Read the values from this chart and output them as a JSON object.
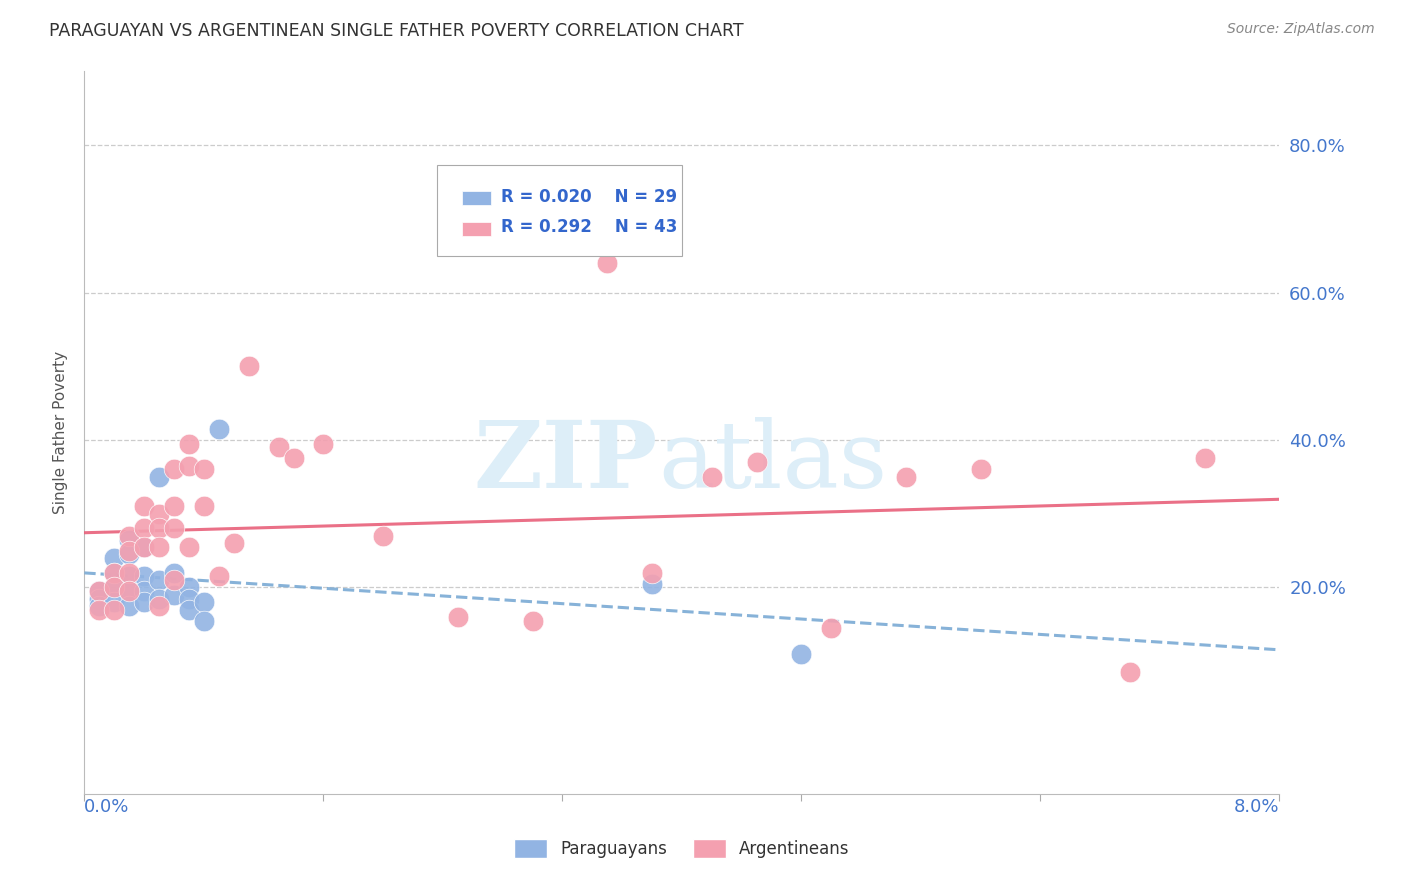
{
  "title": "PARAGUAYAN VS ARGENTINEAN SINGLE FATHER POVERTY CORRELATION CHART",
  "source": "Source: ZipAtlas.com",
  "ylabel": "Single Father Poverty",
  "xlim": [
    0.0,
    0.08
  ],
  "ylim": [
    -0.08,
    0.9
  ],
  "legend_r1": "R = 0.020",
  "legend_n1": "N = 29",
  "legend_r2": "R = 0.292",
  "legend_n2": "N = 43",
  "paraguayan_color": "#92b4e3",
  "argentinean_color": "#f4a0b0",
  "paraguayan_line_color": "#7aaad4",
  "argentinean_line_color": "#e8607a",
  "background_color": "#ffffff",
  "grid_color": "#cccccc",
  "paraguayan_x": [
    0.001,
    0.001,
    0.001,
    0.002,
    0.002,
    0.002,
    0.002,
    0.003,
    0.003,
    0.003,
    0.003,
    0.003,
    0.004,
    0.004,
    0.004,
    0.004,
    0.005,
    0.005,
    0.005,
    0.006,
    0.006,
    0.007,
    0.007,
    0.007,
    0.008,
    0.008,
    0.009,
    0.038,
    0.048
  ],
  "paraguayan_y": [
    0.195,
    0.185,
    0.175,
    0.24,
    0.22,
    0.2,
    0.18,
    0.265,
    0.245,
    0.215,
    0.195,
    0.175,
    0.255,
    0.215,
    0.195,
    0.18,
    0.35,
    0.21,
    0.185,
    0.22,
    0.19,
    0.2,
    0.185,
    0.17,
    0.18,
    0.155,
    0.415,
    0.205,
    0.11
  ],
  "argentinean_x": [
    0.001,
    0.001,
    0.002,
    0.002,
    0.002,
    0.003,
    0.003,
    0.003,
    0.003,
    0.004,
    0.004,
    0.004,
    0.005,
    0.005,
    0.005,
    0.005,
    0.006,
    0.006,
    0.006,
    0.006,
    0.007,
    0.007,
    0.007,
    0.008,
    0.008,
    0.009,
    0.01,
    0.011,
    0.013,
    0.014,
    0.016,
    0.02,
    0.025,
    0.03,
    0.035,
    0.038,
    0.042,
    0.045,
    0.05,
    0.055,
    0.06,
    0.07,
    0.075
  ],
  "argentinean_y": [
    0.195,
    0.17,
    0.22,
    0.2,
    0.17,
    0.27,
    0.25,
    0.22,
    0.195,
    0.31,
    0.28,
    0.255,
    0.3,
    0.28,
    0.255,
    0.175,
    0.36,
    0.31,
    0.28,
    0.21,
    0.395,
    0.365,
    0.255,
    0.36,
    0.31,
    0.215,
    0.26,
    0.5,
    0.39,
    0.375,
    0.395,
    0.27,
    0.16,
    0.155,
    0.64,
    0.22,
    0.35,
    0.37,
    0.145,
    0.35,
    0.36,
    0.085,
    0.375
  ]
}
